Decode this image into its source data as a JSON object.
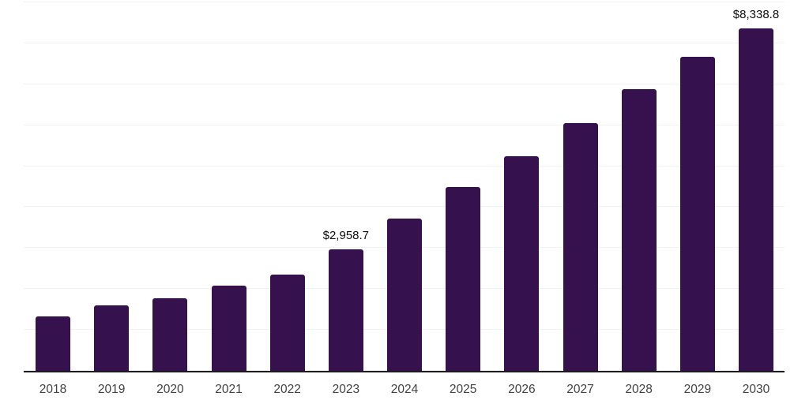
{
  "chart_data": {
    "type": "bar",
    "title": "",
    "xlabel": "",
    "ylabel": "",
    "categories": [
      "2018",
      "2019",
      "2020",
      "2021",
      "2022",
      "2023",
      "2024",
      "2025",
      "2026",
      "2027",
      "2028",
      "2029",
      "2030"
    ],
    "values": [
      1330,
      1590,
      1765,
      2070,
      2340,
      2958.7,
      3720,
      4490,
      5235,
      6040,
      6865,
      7650,
      8338.8
    ],
    "annotations": [
      {
        "index": 5,
        "text": "$2,958.7"
      },
      {
        "index": 12,
        "text": "$8,338.8"
      }
    ],
    "ylim": [
      0,
      9000
    ],
    "gridlines": {
      "visible": true,
      "count": 10,
      "step": 1000
    },
    "legend_position": "none",
    "colors": {
      "bar": "#35124d",
      "gridline": "#f2f2f2",
      "axis": "#1c1c1c",
      "tick_label": "#424242",
      "data_label": "#0d0d0d",
      "background": "#ffffff"
    }
  }
}
